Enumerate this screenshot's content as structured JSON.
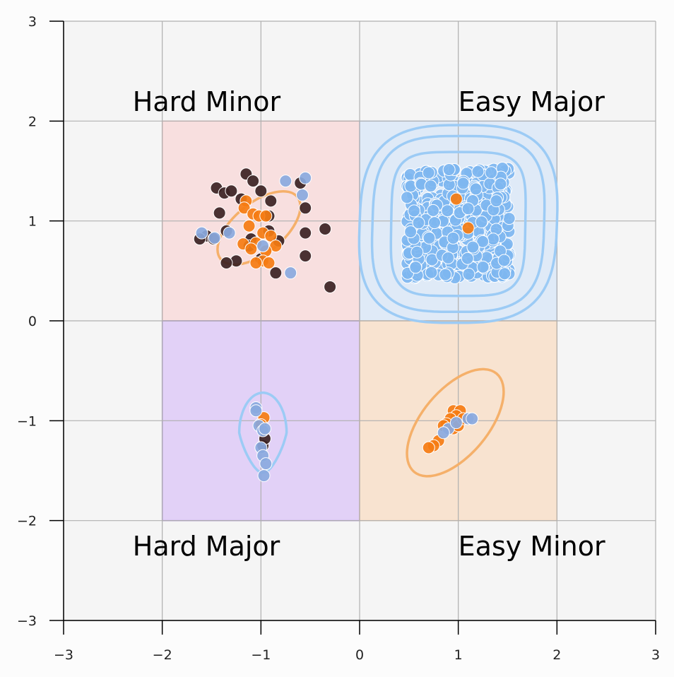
{
  "chart_data": {
    "type": "scatter",
    "title": "",
    "xlabel": "",
    "ylabel": "",
    "xlim": [
      -3,
      3
    ],
    "ylim": [
      -3,
      3
    ],
    "grid": true,
    "x_ticks": [
      -3,
      -2,
      -1,
      0,
      1,
      2,
      3
    ],
    "y_ticks": [
      -3,
      -2,
      -1,
      0,
      1,
      2,
      3
    ],
    "x_tick_labels": [
      "−3",
      "−2",
      "−1",
      "0",
      "1",
      "2",
      "3"
    ],
    "y_tick_labels": [
      "−3",
      "−2",
      "−1",
      "0",
      "1",
      "2",
      "3"
    ],
    "regions": [
      {
        "name": "Hard Minor",
        "x_range": [
          -2,
          0
        ],
        "y_range": [
          0,
          2
        ],
        "fill": "#f8dfdf",
        "stroke": "#e6b3b3",
        "label_x": -2.3,
        "label_y": 2.1
      },
      {
        "name": "Easy Major",
        "x_range": [
          0,
          2
        ],
        "y_range": [
          0,
          2
        ],
        "fill": "#dfeaf7",
        "stroke": "#b3c8e6",
        "label_x": 1.0,
        "label_y": 2.1
      },
      {
        "name": "Hard Major",
        "x_range": [
          -2,
          0
        ],
        "y_range": [
          -2,
          0
        ],
        "fill": "#e2d1f7",
        "stroke": "#a07fd0",
        "label_x": -2.3,
        "label_y": -2.35
      },
      {
        "name": "Easy Minor",
        "x_range": [
          0,
          2
        ],
        "y_range": [
          -2,
          0
        ],
        "fill": "#f8e3d0",
        "stroke": "#e8c3a0",
        "label_x": 1.0,
        "label_y": -2.35
      }
    ],
    "colors": {
      "dark": "#3b2223",
      "orange": "#f57c12",
      "light_blue": "#7eb6f0",
      "steel_blue": "#8aa9de",
      "contour_blue": "#9ccbf5",
      "contour_orange": "#f5b06a"
    },
    "series": [
      {
        "color_key": "dark",
        "points": [
          [
            -1.45,
            1.33
          ],
          [
            -1.37,
            1.28
          ],
          [
            -1.3,
            1.3
          ],
          [
            -1.15,
            1.47
          ],
          [
            -1.08,
            1.4
          ],
          [
            -1.0,
            1.3
          ],
          [
            -1.2,
            1.22
          ],
          [
            -1.42,
            1.08
          ],
          [
            -1.55,
            0.85
          ],
          [
            -1.35,
            0.9
          ],
          [
            -1.1,
            0.82
          ],
          [
            -0.92,
            0.9
          ],
          [
            -0.82,
            0.8
          ],
          [
            -1.25,
            0.6
          ],
          [
            -1.35,
            0.58
          ],
          [
            -0.85,
            0.48
          ],
          [
            -0.55,
            0.65
          ],
          [
            -0.55,
            0.88
          ],
          [
            -0.35,
            0.92
          ],
          [
            -0.3,
            0.34
          ],
          [
            -0.55,
            1.13
          ],
          [
            -0.6,
            1.38
          ],
          [
            -0.92,
            1.05
          ],
          [
            -0.9,
            1.2
          ],
          [
            -1.12,
            0.75
          ],
          [
            -1.0,
            0.62
          ],
          [
            -1.62,
            0.82
          ],
          [
            -1.48,
            0.82
          ],
          [
            -0.98,
            -1.25
          ],
          [
            -1.0,
            -1.03
          ],
          [
            -0.96,
            -1.18
          ]
        ]
      },
      {
        "color_key": "orange",
        "points": [
          [
            -1.15,
            1.2
          ],
          [
            -1.17,
            1.13
          ],
          [
            -1.08,
            1.07
          ],
          [
            -1.12,
            0.95
          ],
          [
            -1.02,
            1.05
          ],
          [
            -0.95,
            1.05
          ],
          [
            -0.98,
            0.88
          ],
          [
            -0.9,
            0.85
          ],
          [
            -0.85,
            0.75
          ],
          [
            -0.95,
            0.7
          ],
          [
            -1.05,
            0.78
          ],
          [
            -1.18,
            0.77
          ],
          [
            -1.1,
            0.72
          ],
          [
            -0.98,
            0.6
          ],
          [
            -0.92,
            0.58
          ],
          [
            -1.05,
            0.58
          ],
          [
            1.0,
            1.22
          ],
          [
            0.95,
            0.87
          ],
          [
            1.0,
            0.85
          ],
          [
            0.95,
            -0.9
          ],
          [
            1.02,
            -0.9
          ],
          [
            0.98,
            -0.95
          ],
          [
            0.92,
            -0.98
          ],
          [
            0.88,
            -1.03
          ],
          [
            0.85,
            -1.05
          ],
          [
            0.95,
            -1.08
          ],
          [
            1.0,
            -1.05
          ],
          [
            1.05,
            -0.98
          ],
          [
            0.8,
            -1.2
          ],
          [
            0.75,
            -1.25
          ],
          [
            0.7,
            -1.27
          ],
          [
            -0.97,
            -0.97
          ],
          [
            -1.0,
            -1.04
          ]
        ]
      },
      {
        "color_key": "steel_blue",
        "points": [
          [
            -0.75,
            1.4
          ],
          [
            -0.55,
            1.43
          ],
          [
            -0.58,
            1.26
          ],
          [
            -1.6,
            0.88
          ],
          [
            -1.47,
            0.83
          ],
          [
            -1.32,
            0.88
          ],
          [
            -0.98,
            0.75
          ],
          [
            -0.7,
            0.48
          ],
          [
            -1.05,
            -0.87
          ],
          [
            -1.05,
            -0.9
          ],
          [
            -1.02,
            -1.05
          ],
          [
            -0.98,
            -1.1
          ],
          [
            -0.96,
            -1.08
          ],
          [
            -1.0,
            -1.27
          ],
          [
            -0.98,
            -1.35
          ],
          [
            -0.95,
            -1.43
          ],
          [
            -0.97,
            -1.55
          ],
          [
            0.9,
            -1.08
          ],
          [
            0.98,
            -1.02
          ],
          [
            1.1,
            -0.98
          ],
          [
            1.14,
            -0.98
          ],
          [
            0.85,
            -1.12
          ]
        ]
      },
      {
        "color_key": "light_blue",
        "cluster": {
          "center": [
            1.0,
            0.98
          ],
          "half_width": 0.52,
          "half_height": 0.55,
          "count": 520,
          "seed": 7
        }
      },
      {
        "color_key": "orange",
        "points": [
          [
            1.1,
            0.93
          ],
          [
            0.98,
            1.22
          ]
        ]
      }
    ],
    "contours": [
      {
        "color_key": "contour_orange",
        "type": "ellipse",
        "cx": -1.02,
        "cy": 0.93,
        "rx": 0.5,
        "ry": 0.25,
        "angle_deg": -39
      },
      {
        "color_key": "contour_orange",
        "type": "ellipse",
        "cx": 0.97,
        "cy": -1.02,
        "rx": 0.65,
        "ry": 0.33,
        "angle_deg": -50
      },
      {
        "color_key": "contour_blue",
        "type": "blob",
        "cx": -0.98,
        "cy": -1.12,
        "rx": 0.24,
        "ry": 0.4,
        "squish": 0.35
      },
      {
        "color_key": "contour_blue",
        "type": "superellipse",
        "cx": 1.0,
        "cy": 0.97,
        "rx": 0.68,
        "ry": 0.72,
        "p": 4.2,
        "tilt": 0.06
      },
      {
        "color_key": "contour_blue",
        "type": "superellipse",
        "cx": 1.0,
        "cy": 0.97,
        "rx": 0.87,
        "ry": 0.88,
        "p": 3.3,
        "tilt": 0.1
      },
      {
        "color_key": "contour_blue",
        "type": "superellipse",
        "cx": 1.0,
        "cy": 0.97,
        "rx": 1.0,
        "ry": 0.99,
        "p": 3.0,
        "tilt": 0.12
      }
    ]
  }
}
